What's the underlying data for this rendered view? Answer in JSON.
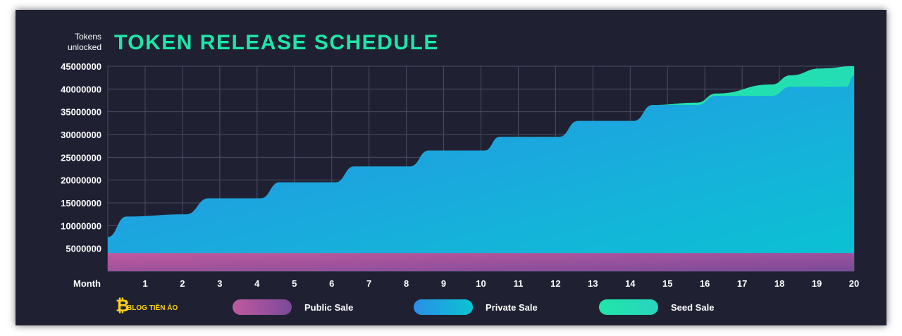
{
  "chart_data": {
    "type": "area",
    "title": "TOKEN RELEASE SCHEDULE",
    "ylabel": "Tokens unlocked",
    "ylabel_lines": [
      "Tokens",
      "unlocked"
    ],
    "xlabel": "Month",
    "ylim": [
      0,
      45000000
    ],
    "xlim": [
      0,
      20
    ],
    "x_ticks": [
      1,
      2,
      3,
      4,
      5,
      6,
      7,
      8,
      9,
      10,
      11,
      12,
      13,
      14,
      15,
      16,
      17,
      18,
      19,
      20
    ],
    "y_ticks": [
      5000000,
      10000000,
      15000000,
      20000000,
      25000000,
      30000000,
      35000000,
      40000000,
      45000000
    ],
    "y_tick_labels": [
      "5000000",
      "10000000",
      "15000000",
      "20000000",
      "25000000",
      "30000000",
      "35000000",
      "40000000",
      "45000000"
    ],
    "grid": true,
    "stacked": true,
    "series": [
      {
        "name": "Public Sale",
        "color_start": "#c05a9e",
        "color_end": "#7a4a9a",
        "points": [
          [
            0,
            4000000
          ],
          [
            20,
            4000000
          ]
        ]
      },
      {
        "name": "Private Sale",
        "color_start": "#2a8fe8",
        "color_end": "#0ac4d2",
        "points": [
          [
            0,
            7500000
          ],
          [
            0.5,
            12000000
          ],
          [
            2.1,
            12500000
          ],
          [
            2.7,
            16000000
          ],
          [
            4.1,
            16000000
          ],
          [
            4.6,
            19500000
          ],
          [
            6.1,
            19500000
          ],
          [
            6.6,
            23000000
          ],
          [
            8.1,
            23000000
          ],
          [
            8.6,
            26500000
          ],
          [
            10.1,
            26500000
          ],
          [
            10.5,
            29500000
          ],
          [
            12.1,
            29500000
          ],
          [
            12.6,
            33000000
          ],
          [
            14.1,
            33000000
          ],
          [
            14.6,
            36500000
          ],
          [
            15.8,
            36500000
          ],
          [
            16.3,
            38500000
          ],
          [
            17.8,
            38500000
          ],
          [
            18.3,
            40500000
          ],
          [
            19.8,
            40500000
          ],
          [
            20,
            43000000
          ]
        ]
      },
      {
        "name": "Seed Sale",
        "color_start": "#1fe6a8",
        "color_end": "#2ad4c0",
        "points": [
          [
            14.6,
            36500000
          ],
          [
            15.8,
            37000000
          ],
          [
            16.3,
            39000000
          ],
          [
            17.8,
            41000000
          ],
          [
            18.3,
            43000000
          ],
          [
            19.1,
            44500000
          ],
          [
            20,
            45000000
          ]
        ]
      }
    ],
    "legend": {
      "placement": "bottom",
      "items": [
        {
          "name": "Public Sale",
          "color_start": "#c05a9e",
          "color_end": "#7a4a9a"
        },
        {
          "name": "Private Sale",
          "color_start": "#2a8fe8",
          "color_end": "#0ac4d2"
        },
        {
          "name": "Seed Sale",
          "color_start": "#1fe6a8",
          "color_end": "#2ad4c0"
        }
      ]
    }
  },
  "watermark": {
    "text": "BLOG TIỀN ẢO",
    "color": "#ffd21a"
  },
  "colors": {
    "background": "#1f2133",
    "title": "#1fe6a8",
    "text": "#ffffff",
    "grid": "#4a4d63"
  }
}
